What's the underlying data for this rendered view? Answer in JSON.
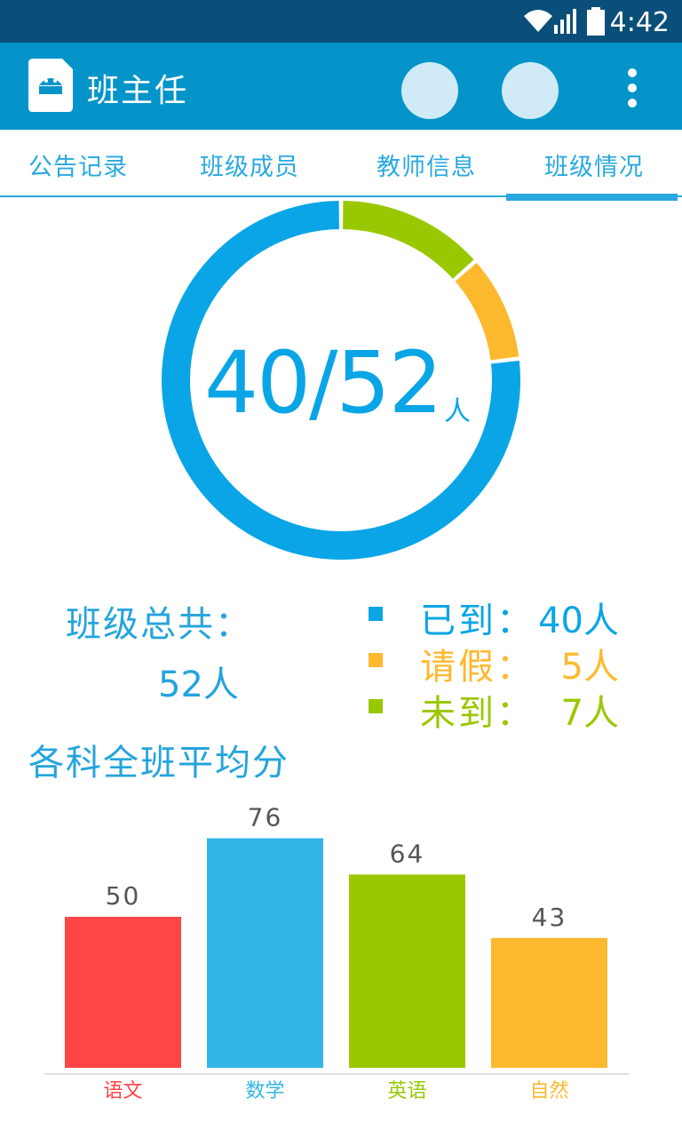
{
  "status_bar": {
    "time": "4:42"
  },
  "app_bar": {
    "title": "班主任"
  },
  "tabs": [
    {
      "label": "公告记录"
    },
    {
      "label": "班级成员"
    },
    {
      "label": "教师信息"
    },
    {
      "label": "班级情况",
      "active": true
    }
  ],
  "attendance": {
    "center_number": "40/52",
    "center_unit": "人",
    "total_label": "班级总共：",
    "total_value": "52人",
    "present": 40,
    "leave": 5,
    "absent": 7,
    "total": 52,
    "legend": [
      {
        "label": "已到：",
        "value": "40人",
        "color": "#0aa5e6"
      },
      {
        "label": "请假：",
        "value": "5人",
        "color": "#fdb92e"
      },
      {
        "label": "未到：",
        "value": "7人",
        "color": "#99c800"
      }
    ],
    "colors": {
      "present": "#0aa5e6",
      "leave": "#fdb92e",
      "absent": "#99c800"
    }
  },
  "section_title": "各科全班平均分",
  "chart_data": {
    "type": "bar",
    "categories": [
      "语文",
      "数学",
      "英语",
      "自然"
    ],
    "values": [
      50,
      76,
      64,
      43
    ],
    "colors": [
      "#ff4545",
      "#32b4e6",
      "#99c800",
      "#fdb92e"
    ],
    "ylim": [
      0,
      100
    ],
    "data_labels": true,
    "grid": false
  }
}
